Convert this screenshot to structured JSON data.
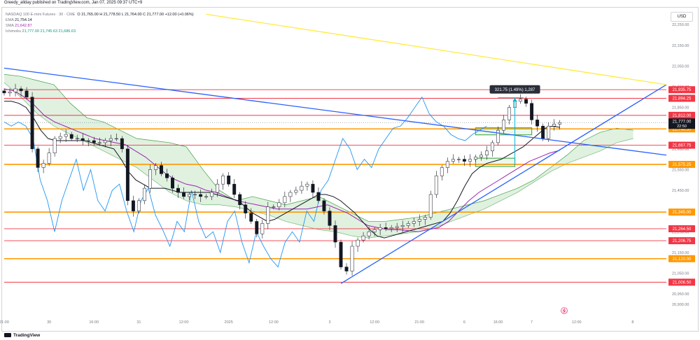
{
  "header": {
    "publisher": "Greedy_allday published on TradingView.com, Jan 07, 2025 09:37 UTC+9"
  },
  "currency_button": "USD",
  "legend": {
    "symbol": "NASDAQ 100 E-mini Futures · 30 · CME",
    "ohlc": "O 21,765.00  H 21,778.50  L 21,764.00  C 21,777.00  +12.00 (+0.06%)",
    "ema_label": "EMA",
    "ema_value": "21,754.14",
    "sma_label": "SMA",
    "sma_value": "21,642.87",
    "ichimoku_label": "Ichimoku",
    "ichimoku_values": "21,777.00  21,745.63  21,686.63"
  },
  "footer": {
    "brand": "TradingView"
  },
  "colors": {
    "candle": "#131722",
    "ema": "#131722",
    "sma": "#9c27b0",
    "lagging": "#2196f3",
    "cloud": "#a5d6a7",
    "trend": "#2962ff",
    "upper_trend": "#ffeb3b",
    "red_level": "#f23645",
    "orange_level": "#ff9800",
    "box": "#4caf50",
    "measure": "#00bcd4"
  },
  "chart_data": {
    "type": "candlestick",
    "title": "NASDAQ 100 E-mini Futures",
    "timeframe": "30",
    "ylim": [
      20862.5,
      22281
    ],
    "x_labels": [
      {
        "label": "21:00",
        "t": 0
      },
      {
        "label": "30",
        "t": 8
      },
      {
        "label": "16:00",
        "t": 16
      },
      {
        "label": "31",
        "t": 24
      },
      {
        "label": "12:00",
        "t": 32
      },
      {
        "label": "2025",
        "t": 40
      },
      {
        "label": "12:00",
        "t": 48
      },
      {
        "label": "3",
        "t": 58
      },
      {
        "label": "12:00",
        "t": 66
      },
      {
        "label": "21:00",
        "t": 74
      },
      {
        "label": "6",
        "t": 82
      },
      {
        "label": "16:00",
        "t": 88
      },
      {
        "label": "7",
        "t": 94
      },
      {
        "label": "12:00",
        "t": 102
      },
      {
        "label": "8",
        "t": 112
      }
    ],
    "y_ticks": [
      "22,250.00",
      "22,150.00",
      "22,050.00",
      "21,950.00",
      "21,850.00",
      "21,750.00",
      "21,650.00",
      "21,550.00",
      "21,450.00",
      "21,350.00",
      "21,250.00",
      "21,150.00",
      "21,050.00",
      "20,950.00",
      "20,900.00"
    ],
    "y_tick_values": [
      22250,
      22150,
      22050,
      21950,
      21850,
      21750,
      21650,
      21550,
      21450,
      21350,
      21250,
      21150,
      21050,
      20950,
      20900
    ],
    "horizontal_levels": [
      {
        "value": 21935.75,
        "label": "21,935.75",
        "kind": "red"
      },
      {
        "value": 21894.25,
        "label": "21,894.25",
        "kind": "red"
      },
      {
        "value": 21812.0,
        "label": "21,812.00",
        "kind": "red"
      },
      {
        "value": 21746.5,
        "label": "21,746.50",
        "kind": "orange"
      },
      {
        "value": 21667.75,
        "label": "21,667.75",
        "kind": "red"
      },
      {
        "value": 21575.25,
        "label": "21,575.25",
        "kind": "orange"
      },
      {
        "value": 21345.0,
        "label": "21,345.00",
        "kind": "orange"
      },
      {
        "value": 21264.5,
        "label": "21,264.50",
        "kind": "red"
      },
      {
        "value": 21206.75,
        "label": "21,206.75",
        "kind": "red"
      },
      {
        "value": 21120.0,
        "label": "21,120.00",
        "kind": "orange"
      },
      {
        "value": 21006.5,
        "label": "21,006.50",
        "kind": "red"
      }
    ],
    "last_price": {
      "value": 21777.0,
      "label": "21,777.00",
      "countdown": "22:50"
    },
    "measurement": {
      "label": "321.75 (1.49%) 1,287",
      "t": 91,
      "from": 21575,
      "to": 21897
    },
    "trendlines": [
      {
        "name": "",
        "from": {
          "t": 0,
          "v": 22040
        },
        "to": {
          "t": 118,
          "v": 21620
        },
        "color": "blue"
      },
      {
        "name": "",
        "from": {
          "t": 60,
          "v": 21000
        },
        "to": {
          "t": 118,
          "v": 21960
        },
        "color": "blue"
      },
      {
        "name": "",
        "from": {
          "t": 36,
          "v": 22300
        },
        "to": {
          "t": 118,
          "v": 21960
        },
        "color": "yellow"
      }
    ],
    "boxes": [
      {
        "t0": 84,
        "t1": 94,
        "v0": 21718,
        "v1": 21752
      },
      {
        "t0": 84,
        "t1": 91,
        "v0": 21565,
        "v1": 21605
      }
    ],
    "candles_close": [
      21920,
      21925,
      21940,
      21930,
      21900,
      21650,
      21560,
      21580,
      21630,
      21700,
      21710,
      21720,
      21700,
      21700,
      21690,
      21690,
      21680,
      21680,
      21690,
      21700,
      21700,
      21650,
      21400,
      21350,
      21400,
      21460,
      21550,
      21570,
      21530,
      21510,
      21460,
      21440,
      21420,
      21430,
      21430,
      21420,
      21420,
      21440,
      21480,
      21520,
      21480,
      21430,
      21380,
      21340,
      21300,
      21240,
      21290,
      21370,
      21370,
      21390,
      21420,
      21440,
      21450,
      21470,
      21480,
      21440,
      21400,
      21350,
      21280,
      21200,
      21080,
      21060,
      21180,
      21210,
      21230,
      21250,
      21260,
      21270,
      21265,
      21270,
      21275,
      21280,
      21290,
      21300,
      21310,
      21320,
      21430,
      21520,
      21560,
      21590,
      21600,
      21600,
      21590,
      21600,
      21610,
      21620,
      21640,
      21680,
      21740,
      21790,
      21850,
      21880,
      21890,
      21870,
      21790,
      21760,
      21700,
      21760,
      21770,
      21777
    ],
    "ema": [
      21880,
      21880,
      21870,
      21850,
      21800,
      21740,
      21700,
      21690,
      21690,
      21690,
      21690,
      21690,
      21680,
      21670,
      21660,
      21650,
      21600,
      21540,
      21500,
      21480,
      21460,
      21460,
      21460,
      21450,
      21440,
      21440,
      21440,
      21440,
      21440,
      21430,
      21420,
      21410,
      21400,
      21370,
      21340,
      21320,
      21300,
      21310,
      21330,
      21350,
      21370,
      21390,
      21410,
      21430,
      21430,
      21420,
      21400,
      21370,
      21340,
      21300,
      21260,
      21230,
      21220,
      21230,
      21240,
      21250,
      21260,
      21270,
      21280,
      21290,
      21300,
      21340,
      21400,
      21470,
      21530,
      21560,
      21580,
      21590,
      21600,
      21620,
      21640,
      21660,
      21690,
      21720,
      21750,
      21760,
      21754
    ],
    "sma": [
      21940,
      21930,
      21900,
      21860,
      21810,
      21780,
      21760,
      21740,
      21720,
      21700,
      21690,
      21680,
      21670,
      21640,
      21610,
      21570,
      21530,
      21500,
      21480,
      21470,
      21450,
      21440,
      21420,
      21400,
      21390,
      21380,
      21370,
      21360,
      21360,
      21360,
      21360,
      21370,
      21380,
      21360,
      21340,
      21310,
      21280,
      21270,
      21260,
      21260,
      21255,
      21250,
      21260,
      21270,
      21300,
      21350,
      21400,
      21440,
      21470,
      21500,
      21530,
      21560,
      21590,
      21610,
      21630,
      21643
    ],
    "lagging_span": [
      21780,
      21760,
      21780,
      21760,
      21700,
      21500,
      21400,
      21250,
      21400,
      21500,
      21600,
      21450,
      21550,
      21400,
      21350,
      21450,
      21480,
      21350,
      21250,
      21400,
      21460,
      21330,
      21260,
      21180,
      21300,
      21250,
      21450,
      21300,
      21220,
      21250,
      21150,
      21300,
      21350,
      21200,
      21100,
      21250,
      21180,
      21120,
      21080,
      21200,
      21250,
      21200,
      21350,
      21300,
      21450,
      21500,
      21600,
      21700,
      21650,
      21550,
      21600,
      21560,
      21650,
      21700,
      21750,
      21760,
      21800,
      21850,
      21900,
      21820,
      21780,
      21760,
      21720,
      21700,
      21690,
      21720,
      21740,
      21760
    ],
    "cloud_top": [
      22010,
      22000,
      21980,
      21960,
      21870,
      21800,
      21780,
      21740,
      21700,
      21690,
      21680,
      21660,
      21550,
      21450,
      21400,
      21420,
      21400,
      21380,
      21400,
      21420,
      21380,
      21340,
      21300,
      21300,
      21310,
      21320,
      21340,
      21360,
      21380,
      21400,
      21430,
      21460,
      21500,
      21560,
      21620,
      21690,
      21730,
      21750,
      21740
    ],
    "cloud_bottom": [
      21970,
      21900,
      21820,
      21760,
      21720,
      21680,
      21640,
      21600,
      21560,
      21500,
      21440,
      21400,
      21380,
      21380,
      21370,
      21350,
      21330,
      21300,
      21280,
      21260,
      21250,
      21230,
      21220,
      21230,
      21240,
      21250,
      21270,
      21300,
      21330,
      21360,
      21400,
      21440,
      21490,
      21540,
      21580,
      21610,
      21640,
      21680,
      21700
    ]
  }
}
